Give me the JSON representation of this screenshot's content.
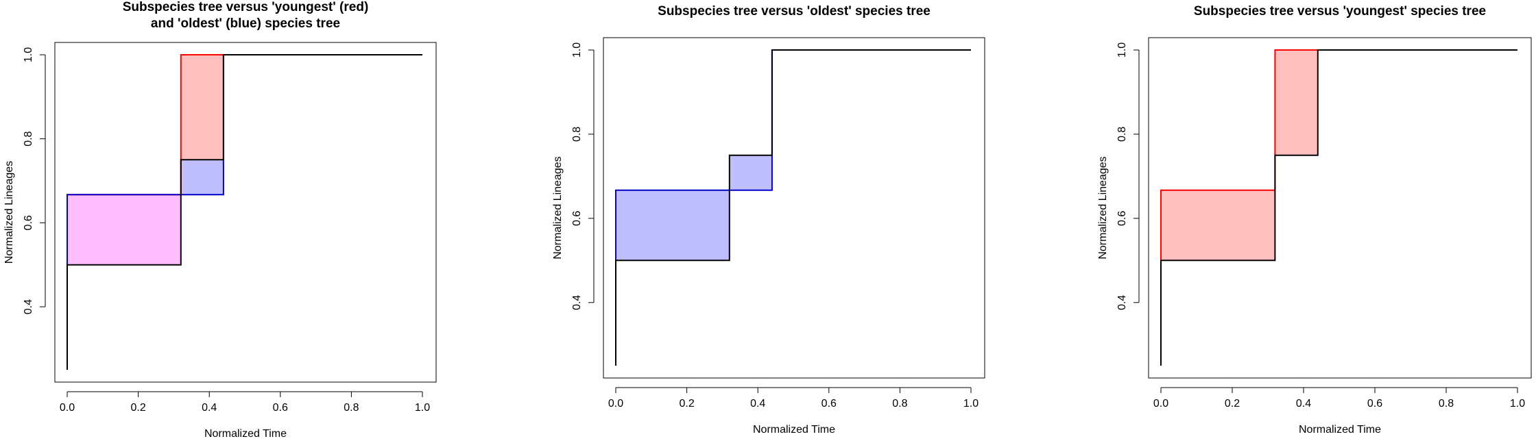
{
  "colors": {
    "subspecies": "#000000",
    "youngest": "#ff0000",
    "oldest": "#0000cc",
    "youngest_fill": "#ffbfbf",
    "oldest_fill": "#bfbfff",
    "overlap_fill": "#ffbfff"
  },
  "chart_data": [
    {
      "type": "line",
      "title_lines": [
        "Subspecies tree versus 'youngest' (red)",
        "and 'oldest' (blue) species tree"
      ],
      "xlabel": "Normalized Time",
      "ylabel": "Normalized Lineages",
      "xlim": [
        0,
        1
      ],
      "ylim": [
        0.25,
        1.0
      ],
      "xticks": [
        "0.0",
        "0.2",
        "0.4",
        "0.6",
        "0.8",
        "1.0"
      ],
      "yticks": [
        "0.4",
        "0.6",
        "0.8",
        "1.0"
      ],
      "series": [
        {
          "role": "youngest",
          "x": [
            0,
            0,
            0.32,
            0.32,
            1.0
          ],
          "y": [
            0.333,
            0.667,
            0.667,
            1.0,
            1.0
          ]
        },
        {
          "role": "oldest",
          "x": [
            0,
            0,
            0.44,
            0.44,
            1.0
          ],
          "y": [
            0.333,
            0.667,
            0.667,
            1.0,
            1.0
          ]
        },
        {
          "role": "subspecies",
          "x": [
            0,
            0,
            0.32,
            0.32,
            0.44,
            0.44,
            1.0
          ],
          "y": [
            0.25,
            0.5,
            0.5,
            0.75,
            0.75,
            1.0,
            1.0
          ]
        }
      ],
      "shaded": [
        "youngest",
        "oldest"
      ]
    },
    {
      "type": "line",
      "title_lines": [
        "Subspecies tree versus 'oldest' species tree"
      ],
      "xlabel": "Normalized Time",
      "ylabel": "Normalized Lineages",
      "xlim": [
        0,
        1
      ],
      "ylim": [
        0.25,
        1.0
      ],
      "xticks": [
        "0.0",
        "0.2",
        "0.4",
        "0.6",
        "0.8",
        "1.0"
      ],
      "yticks": [
        "0.4",
        "0.6",
        "0.8",
        "1.0"
      ],
      "series": [
        {
          "role": "oldest",
          "x": [
            0,
            0,
            0.32,
            0.32,
            0.44,
            0.44,
            1.0
          ],
          "y": [
            0.333,
            0.667,
            0.667,
            0.667,
            0.667,
            1.0,
            1.0
          ]
        },
        {
          "role": "subspecies",
          "x": [
            0,
            0,
            0.32,
            0.32,
            0.44,
            0.44,
            1.0
          ],
          "y": [
            0.25,
            0.5,
            0.5,
            0.75,
            0.75,
            1.0,
            1.0
          ]
        }
      ],
      "shaded": [
        "oldest"
      ]
    },
    {
      "type": "line",
      "title_lines": [
        "Subspecies tree versus 'youngest' species tree"
      ],
      "xlabel": "Normalized Time",
      "ylabel": "Normalized Lineages",
      "xlim": [
        0,
        1
      ],
      "ylim": [
        0.25,
        1.0
      ],
      "xticks": [
        "0.0",
        "0.2",
        "0.4",
        "0.6",
        "0.8",
        "1.0"
      ],
      "yticks": [
        "0.4",
        "0.6",
        "0.8",
        "1.0"
      ],
      "series": [
        {
          "role": "youngest",
          "x": [
            0,
            0,
            0.32,
            0.32,
            1.0
          ],
          "y": [
            0.333,
            0.667,
            0.667,
            1.0,
            1.0
          ]
        },
        {
          "role": "subspecies",
          "x": [
            0,
            0,
            0.32,
            0.32,
            0.44,
            0.44,
            1.0
          ],
          "y": [
            0.25,
            0.5,
            0.5,
            0.75,
            0.75,
            1.0,
            1.0
          ]
        }
      ],
      "shaded": [
        "youngest"
      ]
    }
  ]
}
